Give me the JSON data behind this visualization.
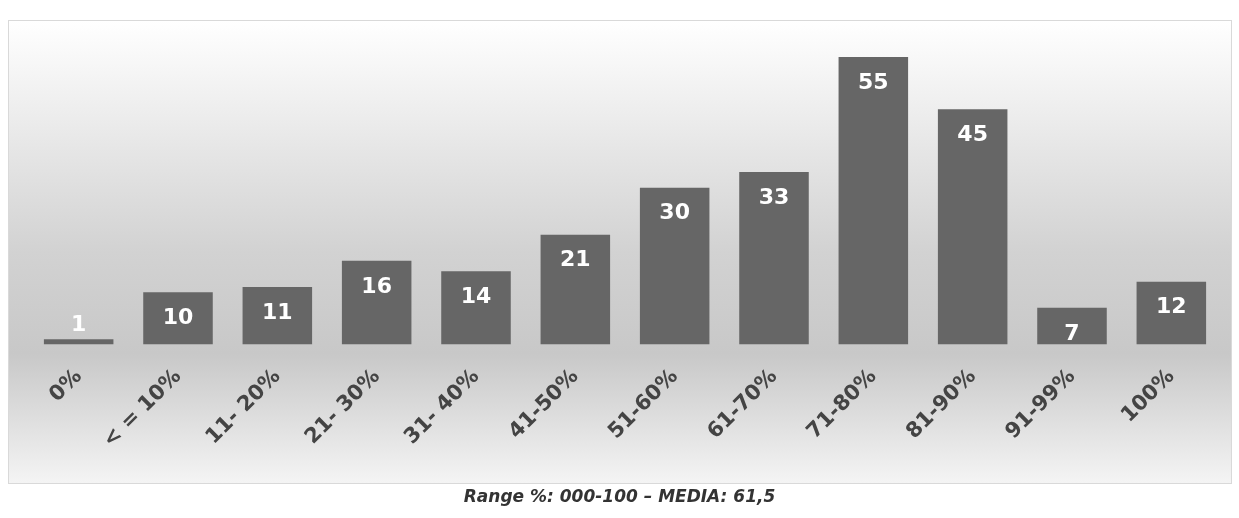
{
  "chart_data": {
    "type": "bar",
    "categories": [
      "0%",
      "< = 10%",
      "11- 20%",
      "21- 30%",
      "31- 40%",
      "41-50%",
      "51-60%",
      "61-70%",
      "71-80%",
      "81-90%",
      "91-99%",
      "100%"
    ],
    "values": [
      1,
      10,
      11,
      16,
      14,
      21,
      30,
      33,
      55,
      45,
      7,
      12
    ],
    "color": "#666666",
    "tick_labels": "x",
    "data_labels": true,
    "grid": false,
    "legend": false,
    "annotations": [
      "Range %: 000-100 – MEDIA: 61,5"
    ]
  }
}
